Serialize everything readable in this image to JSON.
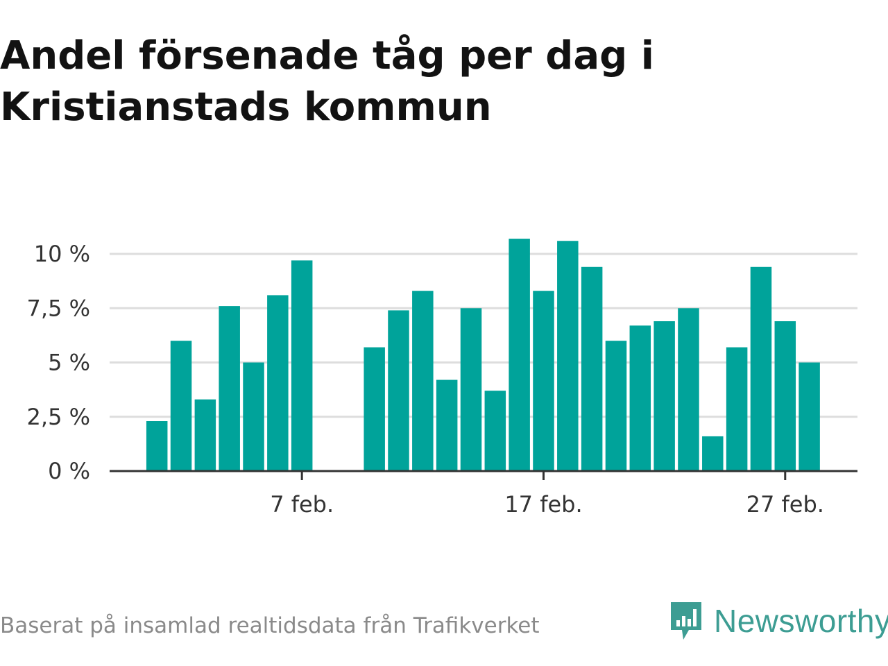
{
  "title": "Andel försenade tåg per dag i Kristianstads kommun",
  "footer": "Baserat på insamlad realtidsdata från Trafikverket",
  "brand": {
    "name": "Newsworthy",
    "icon": "newsworthy-logo-icon",
    "color": "#3d9d93"
  },
  "chart_data": {
    "type": "bar",
    "title": "Andel försenade tåg per dag i Kristianstads kommun",
    "x": [
      "2024-02-01",
      "2024-02-02",
      "2024-02-03",
      "2024-02-04",
      "2024-02-05",
      "2024-02-06",
      "2024-02-07",
      "2024-02-08",
      "2024-02-09",
      "2024-02-10",
      "2024-02-11",
      "2024-02-12",
      "2024-02-13",
      "2024-02-14",
      "2024-02-15",
      "2024-02-16",
      "2024-02-17",
      "2024-02-18",
      "2024-02-19",
      "2024-02-20",
      "2024-02-21",
      "2024-02-22",
      "2024-02-23",
      "2024-02-24",
      "2024-02-25",
      "2024-02-26",
      "2024-02-27",
      "2024-02-28"
    ],
    "values": [
      2.3,
      6.0,
      3.3,
      7.6,
      5.0,
      8.1,
      9.7,
      null,
      null,
      5.7,
      7.4,
      8.3,
      4.2,
      7.5,
      3.7,
      10.7,
      8.3,
      10.6,
      9.4,
      6.0,
      6.7,
      6.9,
      7.5,
      1.6,
      5.7,
      9.4,
      6.9,
      5.0
    ],
    "yticks": [
      "0 %",
      "2,5 %",
      "5 %",
      "7,5 %",
      "10 %"
    ],
    "ytick_values": [
      0,
      2.5,
      5,
      7.5,
      10
    ],
    "xticks": [
      "7 feb.",
      "17 feb.",
      "27 feb."
    ],
    "xtick_values": [
      "2024-02-07",
      "2024-02-17",
      "2024-02-27"
    ],
    "ylim": [
      0,
      10.8
    ],
    "grid": true,
    "colors": {
      "bar": "#00a39a",
      "grid": "#dddddd",
      "axis": "#333333"
    }
  }
}
